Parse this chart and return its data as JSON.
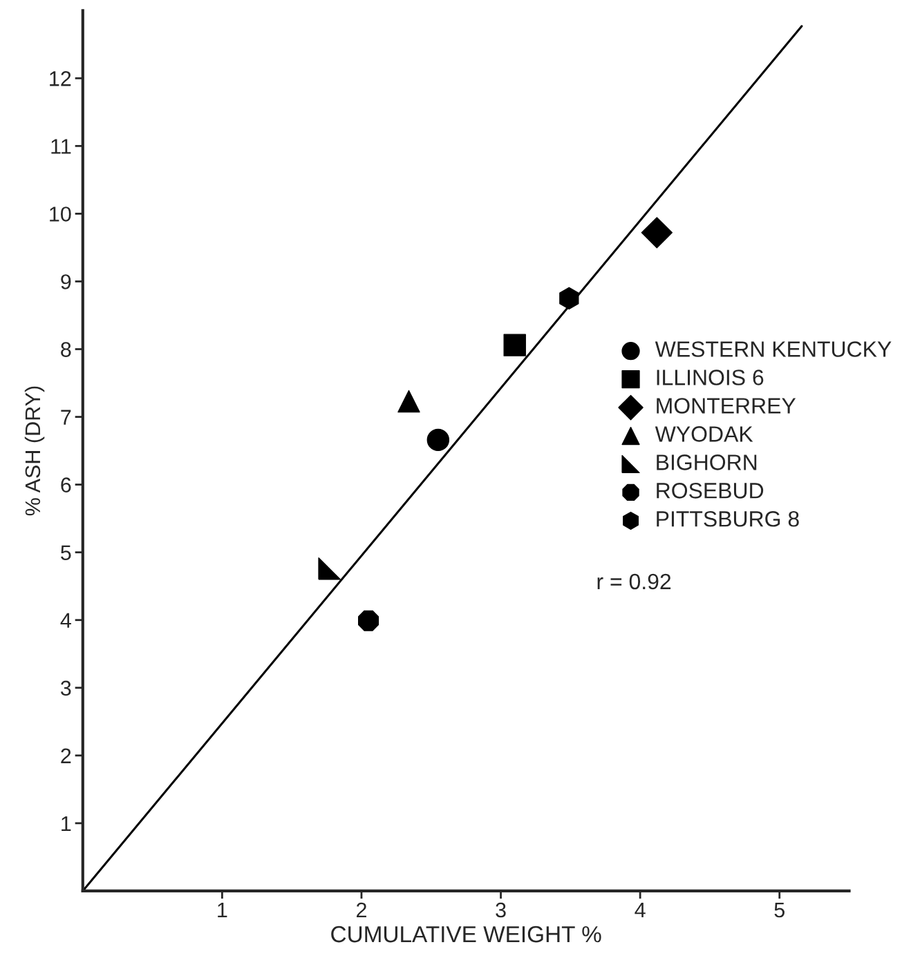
{
  "chart_data": {
    "type": "scatter",
    "xlabel": "CUMULATIVE WEIGHT %",
    "ylabel": "% ASH (DRY)",
    "xlim": [
      0,
      5.5
    ],
    "ylim": [
      0,
      13
    ],
    "xticks": [
      1,
      2,
      3,
      4,
      5
    ],
    "yticks": [
      1,
      2,
      3,
      4,
      5,
      6,
      7,
      8,
      9,
      10,
      11,
      12
    ],
    "grid": false,
    "legend": "right",
    "series": [
      {
        "name": "WESTERN KENTUCKY",
        "color": "#000000",
        "marker": "circle",
        "x": [
          2.55
        ],
        "values": [
          6.66
        ]
      },
      {
        "name": "ILLINOIS 6",
        "color": "#000000",
        "marker": "square",
        "x": [
          3.1
        ],
        "values": [
          8.06
        ]
      },
      {
        "name": "MONTERREY",
        "color": "#000000",
        "marker": "diamond",
        "x": [
          4.12
        ],
        "values": [
          9.72
        ]
      },
      {
        "name": "WYODAK",
        "color": "#000000",
        "marker": "triangle",
        "x": [
          2.34
        ],
        "values": [
          7.23
        ]
      },
      {
        "name": "BIGHORN",
        "color": "#000000",
        "x": [
          1.77
        ],
        "values": [
          4.76
        ]
      },
      {
        "name": "ROSEBUD",
        "color": "#000000",
        "x": [
          2.05
        ],
        "values": [
          3.99
        ]
      },
      {
        "name": "PITTSBURG 8",
        "color": "#000000",
        "x": [
          3.49
        ],
        "values": [
          8.75
        ]
      },
      {
        "type": "line",
        "color": "#000000",
        "marker": "none",
        "line_style": "solid",
        "x": [
          0,
          5.16
        ],
        "values": [
          0,
          12.77
        ]
      }
    ],
    "annotations": [
      {
        "text": "r = 0.92"
      }
    ]
  }
}
